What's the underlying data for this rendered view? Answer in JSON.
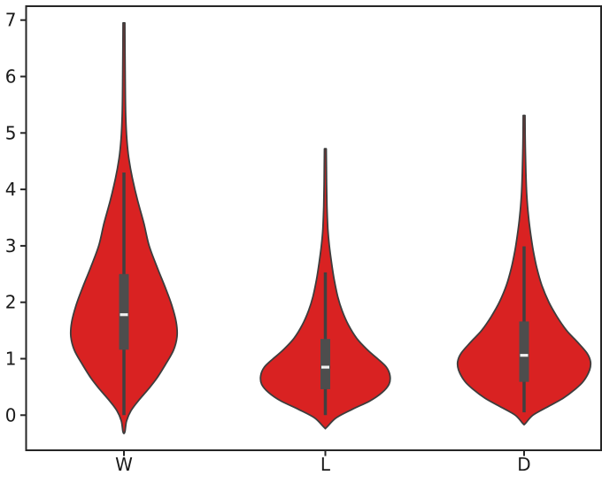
{
  "figure": {
    "background": "#ffffff",
    "text_color": "#1a1a1a",
    "spine_color": "#262626",
    "violin_fill": "#d92222",
    "violin_edge": "#3d3d3d",
    "inner_box_color": "#4d4d4d",
    "whisker_color": "#404040",
    "median_color": "#f2f2f2"
  },
  "chart_data": {
    "type": "violin",
    "title": "",
    "xlabel": "",
    "ylabel": "",
    "grid": false,
    "legend": null,
    "categories": [
      "W",
      "L",
      "D"
    ],
    "yticks": [
      0,
      1,
      2,
      3,
      4,
      5,
      6,
      7
    ],
    "ylim": [
      -0.65,
      7.35
    ],
    "profile_units": "each profile point is [y_value, half_width_px] of the KDE outline",
    "series": [
      {
        "category": "W",
        "data_min": -0.3,
        "data_max": 6.95,
        "q1": 1.16,
        "median": 1.78,
        "q3": 2.5,
        "whisker_low": 0.0,
        "whisker_high": 4.3,
        "profile": [
          [
            6.95,
            1.0
          ],
          [
            6.4,
            1.2
          ],
          [
            5.8,
            1.5
          ],
          [
            5.3,
            2.0
          ],
          [
            4.9,
            3.2
          ],
          [
            4.55,
            5.5
          ],
          [
            4.2,
            9.5
          ],
          [
            3.8,
            15.5
          ],
          [
            3.4,
            22.5
          ],
          [
            3.0,
            28.5
          ],
          [
            2.6,
            38.0
          ],
          [
            2.25,
            47.0
          ],
          [
            1.95,
            54.0
          ],
          [
            1.65,
            59.0
          ],
          [
            1.4,
            60.0
          ],
          [
            1.15,
            56.0
          ],
          [
            0.9,
            47.0
          ],
          [
            0.65,
            37.0
          ],
          [
            0.45,
            27.0
          ],
          [
            0.25,
            16.0
          ],
          [
            0.08,
            8.0
          ],
          [
            -0.1,
            3.0
          ],
          [
            -0.3,
            1.0
          ]
        ]
      },
      {
        "category": "L",
        "data_min": -0.22,
        "data_max": 4.72,
        "q1": 0.46,
        "median": 0.85,
        "q3": 1.35,
        "whisker_low": 0.0,
        "whisker_high": 2.53,
        "profile": [
          [
            4.72,
            1.0
          ],
          [
            4.2,
            1.3
          ],
          [
            3.7,
            1.8
          ],
          [
            3.3,
            2.8
          ],
          [
            3.0,
            4.5
          ],
          [
            2.7,
            7.0
          ],
          [
            2.4,
            10.0
          ],
          [
            2.1,
            14.0
          ],
          [
            1.85,
            19.0
          ],
          [
            1.6,
            26.0
          ],
          [
            1.35,
            36.0
          ],
          [
            1.15,
            48.0
          ],
          [
            1.0,
            59.0
          ],
          [
            0.85,
            69.0
          ],
          [
            0.7,
            73.0
          ],
          [
            0.55,
            72.0
          ],
          [
            0.4,
            64.0
          ],
          [
            0.25,
            50.0
          ],
          [
            0.1,
            30.0
          ],
          [
            -0.05,
            12.0
          ],
          [
            -0.22,
            1.2
          ]
        ]
      },
      {
        "category": "D",
        "data_min": -0.15,
        "data_max": 5.31,
        "q1": 0.59,
        "median": 1.06,
        "q3": 1.66,
        "whisker_low": 0.05,
        "whisker_high": 2.99,
        "profile": [
          [
            5.31,
            1.0
          ],
          [
            4.8,
            1.3
          ],
          [
            4.3,
            2.0
          ],
          [
            3.9,
            3.0
          ],
          [
            3.55,
            4.8
          ],
          [
            3.2,
            7.5
          ],
          [
            2.9,
            10.5
          ],
          [
            2.6,
            14.5
          ],
          [
            2.3,
            20.0
          ],
          [
            2.0,
            28.0
          ],
          [
            1.75,
            37.0
          ],
          [
            1.5,
            48.0
          ],
          [
            1.3,
            60.0
          ],
          [
            1.1,
            71.0
          ],
          [
            0.95,
            75.0
          ],
          [
            0.8,
            74.0
          ],
          [
            0.6,
            67.0
          ],
          [
            0.45,
            57.0
          ],
          [
            0.3,
            44.0
          ],
          [
            0.15,
            27.0
          ],
          [
            0.0,
            10.0
          ],
          [
            -0.15,
            1.2
          ]
        ]
      }
    ]
  }
}
